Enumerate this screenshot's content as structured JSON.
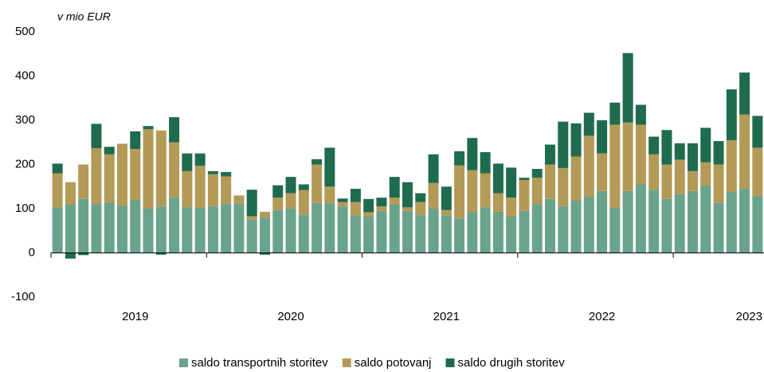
{
  "chart_data": {
    "type": "stacked_bar",
    "y_label": "v mio EUR",
    "categories": [
      null,
      null,
      null,
      null,
      null,
      null,
      "2019",
      null,
      null,
      null,
      null,
      null,
      null,
      null,
      null,
      null,
      null,
      null,
      "2020",
      null,
      null,
      null,
      null,
      null,
      null,
      null,
      null,
      null,
      null,
      null,
      "2021",
      null,
      null,
      null,
      null,
      null,
      null,
      null,
      null,
      null,
      null,
      null,
      "2022",
      null,
      null,
      null,
      null,
      null,
      null,
      null,
      null,
      null,
      null,
      null,
      "2023"
    ],
    "series": [
      {
        "name": "saldo transportnih storitev",
        "color": "#6aa38b",
        "values": [
          103,
          110,
          122,
          110,
          115,
          107,
          120,
          100,
          105,
          125,
          103,
          102,
          105,
          110,
          112,
          75,
          80,
          97,
          100,
          87,
          113,
          112,
          105,
          85,
          82,
          95,
          110,
          95,
          85,
          100,
          85,
          78,
          92,
          103,
          93,
          82,
          95,
          110,
          122,
          105,
          118,
          127,
          140,
          102,
          140,
          155,
          143,
          122,
          133,
          140,
          153,
          113,
          138,
          145,
          128
        ]
      },
      {
        "name": "saldo potovanj",
        "color": "#b49a57",
        "values": [
          77,
          50,
          78,
          127,
          108,
          140,
          115,
          180,
          172,
          125,
          82,
          95,
          73,
          63,
          18,
          8,
          13,
          28,
          35,
          55,
          87,
          38,
          10,
          30,
          10,
          10,
          15,
          8,
          30,
          58,
          12,
          120,
          95,
          77,
          42,
          43,
          70,
          60,
          78,
          87,
          100,
          138,
          85,
          188,
          155,
          135,
          80,
          78,
          78,
          45,
          52,
          87,
          117,
          168,
          110
        ]
      },
      {
        "name": "saldo drugih storitev",
        "color": "#1f6b4e",
        "values": [
          22,
          -13,
          -5,
          55,
          17,
          0,
          40,
          7,
          -4,
          57,
          40,
          28,
          7,
          10,
          0,
          60,
          -4,
          28,
          37,
          13,
          12,
          88,
          8,
          30,
          30,
          20,
          47,
          57,
          20,
          65,
          53,
          32,
          73,
          48,
          67,
          68,
          5,
          20,
          45,
          105,
          75,
          52,
          75,
          50,
          157,
          45,
          40,
          78,
          37,
          63,
          78,
          53,
          115,
          95,
          72
        ]
      }
    ],
    "ylim": [
      -100,
      500
    ],
    "yticks": [
      -100,
      0,
      100,
      200,
      300,
      400,
      500
    ],
    "legend": "bottom"
  }
}
